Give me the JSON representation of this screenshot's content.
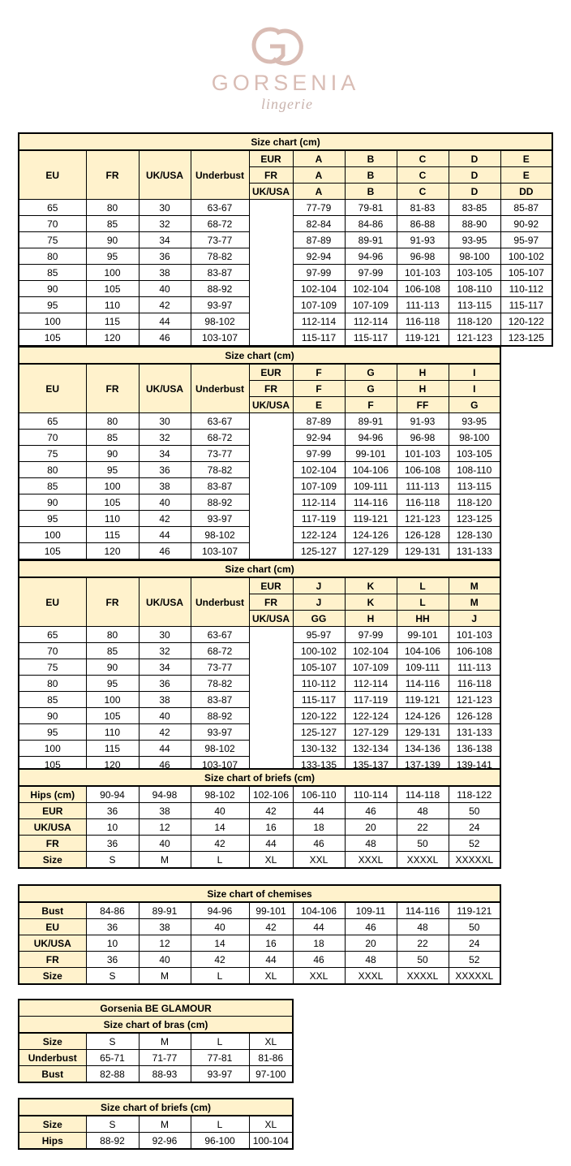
{
  "logo": {
    "brand": "GORSENIA",
    "tagline": "lingerie",
    "color": "#d9bcb4"
  },
  "colors": {
    "header_fill": "#fff2cc",
    "border": "#000000"
  },
  "bra_charts": [
    {
      "title": "Size chart (cm)",
      "headers": [
        "EU",
        "FR",
        "UK/USA",
        "Underbust"
      ],
      "systems": [
        {
          "label": "EUR",
          "cups": [
            "A",
            "B",
            "C",
            "D",
            "E"
          ]
        },
        {
          "label": "FR",
          "cups": [
            "A",
            "B",
            "C",
            "D",
            "E"
          ]
        },
        {
          "label": "UK/USA",
          "cups": [
            "A",
            "B",
            "C",
            "D",
            "DD"
          ]
        }
      ],
      "rows": [
        [
          "65",
          "80",
          "30",
          "63-67",
          "77-79",
          "79-81",
          "81-83",
          "83-85",
          "85-87"
        ],
        [
          "70",
          "85",
          "32",
          "68-72",
          "82-84",
          "84-86",
          "86-88",
          "88-90",
          "90-92"
        ],
        [
          "75",
          "90",
          "34",
          "73-77",
          "87-89",
          "89-91",
          "91-93",
          "93-95",
          "95-97"
        ],
        [
          "80",
          "95",
          "36",
          "78-82",
          "92-94",
          "94-96",
          "96-98",
          "98-100",
          "100-102"
        ],
        [
          "85",
          "100",
          "38",
          "83-87",
          "97-99",
          "97-99",
          "101-103",
          "103-105",
          "105-107"
        ],
        [
          "90",
          "105",
          "40",
          "88-92",
          "102-104",
          "102-104",
          "106-108",
          "108-110",
          "110-112"
        ],
        [
          "95",
          "110",
          "42",
          "93-97",
          "107-109",
          "107-109",
          "111-113",
          "113-115",
          "115-117"
        ],
        [
          "100",
          "115",
          "44",
          "98-102",
          "112-114",
          "112-114",
          "116-118",
          "118-120",
          "120-122"
        ],
        [
          "105",
          "120",
          "46",
          "103-107",
          "115-117",
          "115-117",
          "119-121",
          "121-123",
          "123-125"
        ]
      ]
    },
    {
      "title": "Size chart (cm)",
      "headers": [
        "EU",
        "FR",
        "UK/USA",
        "Underbust"
      ],
      "systems": [
        {
          "label": "EUR",
          "cups": [
            "F",
            "G",
            "H",
            "I"
          ]
        },
        {
          "label": "FR",
          "cups": [
            "F",
            "G",
            "H",
            "I"
          ]
        },
        {
          "label": "UK/USA",
          "cups": [
            "E",
            "F",
            "FF",
            "G"
          ]
        }
      ],
      "rows": [
        [
          "65",
          "80",
          "30",
          "63-67",
          "87-89",
          "89-91",
          "91-93",
          "93-95"
        ],
        [
          "70",
          "85",
          "32",
          "68-72",
          "92-94",
          "94-96",
          "96-98",
          "98-100"
        ],
        [
          "75",
          "90",
          "34",
          "73-77",
          "97-99",
          "99-101",
          "101-103",
          "103-105"
        ],
        [
          "80",
          "95",
          "36",
          "78-82",
          "102-104",
          "104-106",
          "106-108",
          "108-110"
        ],
        [
          "85",
          "100",
          "38",
          "83-87",
          "107-109",
          "109-111",
          "111-113",
          "113-115"
        ],
        [
          "90",
          "105",
          "40",
          "88-92",
          "112-114",
          "114-116",
          "116-118",
          "118-120"
        ],
        [
          "95",
          "110",
          "42",
          "93-97",
          "117-119",
          "119-121",
          "121-123",
          "123-125"
        ],
        [
          "100",
          "115",
          "44",
          "98-102",
          "122-124",
          "124-126",
          "126-128",
          "128-130"
        ],
        [
          "105",
          "120",
          "46",
          "103-107",
          "125-127",
          "127-129",
          "129-131",
          "131-133"
        ]
      ]
    },
    {
      "title": "Size chart (cm)",
      "headers": [
        "EU",
        "FR",
        "UK/USA",
        "Underbust"
      ],
      "systems": [
        {
          "label": "EUR",
          "cups": [
            "J",
            "K",
            "L",
            "M"
          ]
        },
        {
          "label": "FR",
          "cups": [
            "J",
            "K",
            "L",
            "M"
          ]
        },
        {
          "label": "UK/USA",
          "cups": [
            "GG",
            "H",
            "HH",
            "J"
          ]
        }
      ],
      "rows": [
        [
          "65",
          "80",
          "30",
          "63-67",
          "95-97",
          "97-99",
          "99-101",
          "101-103"
        ],
        [
          "70",
          "85",
          "32",
          "68-72",
          "100-102",
          "102-104",
          "104-106",
          "106-108"
        ],
        [
          "75",
          "90",
          "34",
          "73-77",
          "105-107",
          "107-109",
          "109-111",
          "111-113"
        ],
        [
          "80",
          "95",
          "36",
          "78-82",
          "110-112",
          "112-114",
          "114-116",
          "116-118"
        ],
        [
          "85",
          "100",
          "38",
          "83-87",
          "115-117",
          "117-119",
          "119-121",
          "121-123"
        ],
        [
          "90",
          "105",
          "40",
          "88-92",
          "120-122",
          "122-124",
          "124-126",
          "126-128"
        ],
        [
          "95",
          "110",
          "42",
          "93-97",
          "125-127",
          "127-129",
          "129-131",
          "131-133"
        ],
        [
          "100",
          "115",
          "44",
          "98-102",
          "130-132",
          "132-134",
          "134-136",
          "136-138"
        ],
        [
          "105",
          "120",
          "46",
          "103-107",
          "133-135",
          "135-137",
          "137-139",
          "139-141"
        ]
      ]
    }
  ],
  "simple_charts": [
    {
      "titles": [
        "Size chart of briefs (cm)"
      ],
      "rows": [
        [
          "Hips (cm)",
          "90-94",
          "94-98",
          "98-102",
          "102-106",
          "106-110",
          "110-114",
          "114-118",
          "118-122"
        ],
        [
          "EUR",
          "36",
          "38",
          "40",
          "42",
          "44",
          "46",
          "48",
          "50"
        ],
        [
          "UK/USA",
          "10",
          "12",
          "14",
          "16",
          "18",
          "20",
          "22",
          "24"
        ],
        [
          "FR",
          "36",
          "40",
          "42",
          "44",
          "46",
          "48",
          "50",
          "52"
        ],
        [
          "Size",
          "S",
          "M",
          "L",
          "XL",
          "XXL",
          "XXXL",
          "XXXXL",
          "XXXXXL"
        ]
      ]
    },
    {
      "titles": [
        "Size chart of chemises"
      ],
      "rows": [
        [
          "Bust",
          "84-86",
          "89-91",
          "94-96",
          "99-101",
          "104-106",
          "109-11",
          "114-116",
          "119-121"
        ],
        [
          "EU",
          "36",
          "38",
          "40",
          "42",
          "44",
          "46",
          "48",
          "50"
        ],
        [
          "UK/USA",
          "10",
          "12",
          "14",
          "16",
          "18",
          "20",
          "22",
          "24"
        ],
        [
          "FR",
          "36",
          "40",
          "42",
          "44",
          "46",
          "48",
          "50",
          "52"
        ],
        [
          "Size",
          "S",
          "M",
          "L",
          "XL",
          "XXL",
          "XXXL",
          "XXXXL",
          "XXXXXL"
        ]
      ]
    },
    {
      "titles": [
        "Gorsenia BE GLAMOUR",
        "Size chart of bras (cm)"
      ],
      "rows": [
        [
          "Size",
          "S",
          "M",
          "L",
          "XL"
        ],
        [
          "Underbust",
          "65-71",
          "71-77",
          "77-81",
          "81-86"
        ],
        [
          "Bust",
          "82-88",
          "88-93",
          "93-97",
          "97-100"
        ]
      ]
    },
    {
      "titles": [
        "Size chart of briefs (cm)"
      ],
      "rows": [
        [
          "Size",
          "S",
          "M",
          "L",
          "XL"
        ],
        [
          "Hips",
          "88-92",
          "92-96",
          "96-100",
          "100-104"
        ]
      ]
    }
  ]
}
